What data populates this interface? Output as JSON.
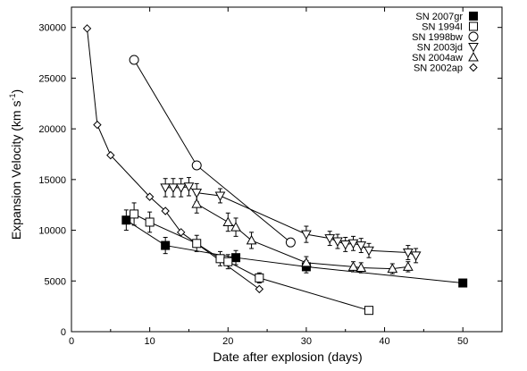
{
  "chart_data": {
    "type": "scatter",
    "title": "",
    "xlabel": "Date after explosion (days)",
    "ylabel": "Expansion Velocity (km s",
    "ylabel_sup": "-1",
    "ylabel_tail": ")",
    "xlim": [
      0,
      55
    ],
    "ylim": [
      0,
      32000
    ],
    "xticks": [
      0,
      10,
      20,
      30,
      40,
      50
    ],
    "yticks": [
      0,
      5000,
      10000,
      15000,
      20000,
      25000,
      30000
    ],
    "grid": false,
    "legend_position": "top-right",
    "series": [
      {
        "name": "SN 2007gr",
        "marker": "filled-square",
        "points": [
          {
            "x": 7,
            "y": 11000,
            "err": 1000
          },
          {
            "x": 12,
            "y": 8500,
            "err": 800
          },
          {
            "x": 21,
            "y": 7300,
            "err": 700
          },
          {
            "x": 30,
            "y": 6400,
            "err": 600
          },
          {
            "x": 50,
            "y": 4800,
            "err": 300
          }
        ]
      },
      {
        "name": "SN 1994I",
        "marker": "open-square",
        "points": [
          {
            "x": 8,
            "y": 11600,
            "err": 1100
          },
          {
            "x": 10,
            "y": 10800,
            "err": 1000
          },
          {
            "x": 16,
            "y": 8700,
            "err": 800
          },
          {
            "x": 19,
            "y": 7200,
            "err": 700
          },
          {
            "x": 20,
            "y": 6900,
            "err": 700
          },
          {
            "x": 24,
            "y": 5300,
            "err": 500
          },
          {
            "x": 38,
            "y": 2100,
            "err": 300
          }
        ]
      },
      {
        "name": "SN 1998bw",
        "marker": "open-circle",
        "points": [
          {
            "x": 8,
            "y": 26800,
            "err": 0
          },
          {
            "x": 16,
            "y": 16400,
            "err": 0
          },
          {
            "x": 28,
            "y": 8800,
            "err": 0
          }
        ]
      },
      {
        "name": "SN 2003jd",
        "marker": "down-triangle",
        "points": [
          {
            "x": 12,
            "y": 14200,
            "err": 900
          },
          {
            "x": 13,
            "y": 14200,
            "err": 900
          },
          {
            "x": 14,
            "y": 14200,
            "err": 900
          },
          {
            "x": 15,
            "y": 14300,
            "err": 900
          },
          {
            "x": 16,
            "y": 13700,
            "err": 900
          },
          {
            "x": 19,
            "y": 13400,
            "err": 700
          },
          {
            "x": 30,
            "y": 9600,
            "err": 800
          },
          {
            "x": 33,
            "y": 9200,
            "err": 700
          },
          {
            "x": 34,
            "y": 8900,
            "err": 700
          },
          {
            "x": 35,
            "y": 8600,
            "err": 700
          },
          {
            "x": 36,
            "y": 8700,
            "err": 700
          },
          {
            "x": 37,
            "y": 8500,
            "err": 700
          },
          {
            "x": 38,
            "y": 8000,
            "err": 700
          },
          {
            "x": 43,
            "y": 7800,
            "err": 700
          },
          {
            "x": 44,
            "y": 7500,
            "err": 700
          }
        ]
      },
      {
        "name": "SN 2004aw",
        "marker": "up-triangle",
        "points": [
          {
            "x": 16,
            "y": 12600,
            "err": 900
          },
          {
            "x": 20,
            "y": 10800,
            "err": 900
          },
          {
            "x": 21,
            "y": 10300,
            "err": 900
          },
          {
            "x": 23,
            "y": 9000,
            "err": 800
          },
          {
            "x": 30,
            "y": 6800,
            "err": 600
          },
          {
            "x": 36,
            "y": 6400,
            "err": 500
          },
          {
            "x": 37,
            "y": 6300,
            "err": 500
          },
          {
            "x": 41,
            "y": 6200,
            "err": 500
          },
          {
            "x": 43,
            "y": 6400,
            "err": 500
          }
        ]
      },
      {
        "name": "SN 2002ap",
        "marker": "diamond",
        "points": [
          {
            "x": 2,
            "y": 29900,
            "err": 0
          },
          {
            "x": 3.3,
            "y": 20400,
            "err": 0
          },
          {
            "x": 5,
            "y": 17400,
            "err": 0
          },
          {
            "x": 10,
            "y": 13300,
            "err": 0
          },
          {
            "x": 12,
            "y": 11900,
            "err": 0
          },
          {
            "x": 14,
            "y": 9800,
            "err": 0
          },
          {
            "x": 24,
            "y": 4200,
            "err": 0
          }
        ]
      }
    ]
  }
}
